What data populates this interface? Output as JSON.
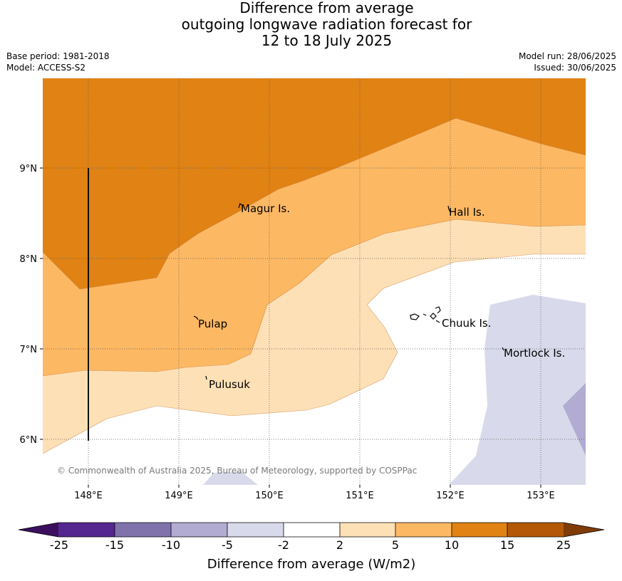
{
  "title_lines": [
    "Difference from average",
    "outgoing longwave radiation forecast for",
    "12 to 18 July 2025"
  ],
  "base_period": "Base period: 1981-2018",
  "model": "Model: ACCESS-S2",
  "model_run": "Model run: 28/06/2025",
  "issued": "Issued: 30/06/2025",
  "axes": {
    "lon_ticks": [
      "148°E",
      "149°E",
      "150°E",
      "151°E",
      "152°E",
      "153°E"
    ],
    "lat_ticks": [
      "9°N",
      "8°N",
      "7°N",
      "6°N"
    ]
  },
  "places": [
    {
      "name": "Magur Is."
    },
    {
      "name": "Hall Is."
    },
    {
      "name": "Pulap"
    },
    {
      "name": "Chuuk Is."
    },
    {
      "name": "Mortlock Is."
    },
    {
      "name": "Pulusuk"
    }
  ],
  "copyright": "© Commonwealth of Australia 2025, Bureau of Meteorology, supported by COSPPac",
  "colorbar": {
    "title": "Difference from average (W/m2)",
    "ticks": [
      "-25",
      "-15",
      "-10",
      "-5",
      "-2",
      "2",
      "5",
      "10",
      "15",
      "25"
    ],
    "colors": {
      "below_min": "#3b0f5e",
      "bin_neg25_neg15": "#54278f",
      "bin_neg15_neg10": "#8073ac",
      "bin_neg10_neg5": "#b2abd2",
      "bin_neg5_neg2": "#d8daeb",
      "bin_neg2_2": "#ffffff",
      "bin_2_5": "#fee0b6",
      "bin_5_10": "#fdb863",
      "bin_10_15": "#e08214",
      "bin_15_25": "#b35806",
      "above_max": "#7f3b08"
    }
  }
}
